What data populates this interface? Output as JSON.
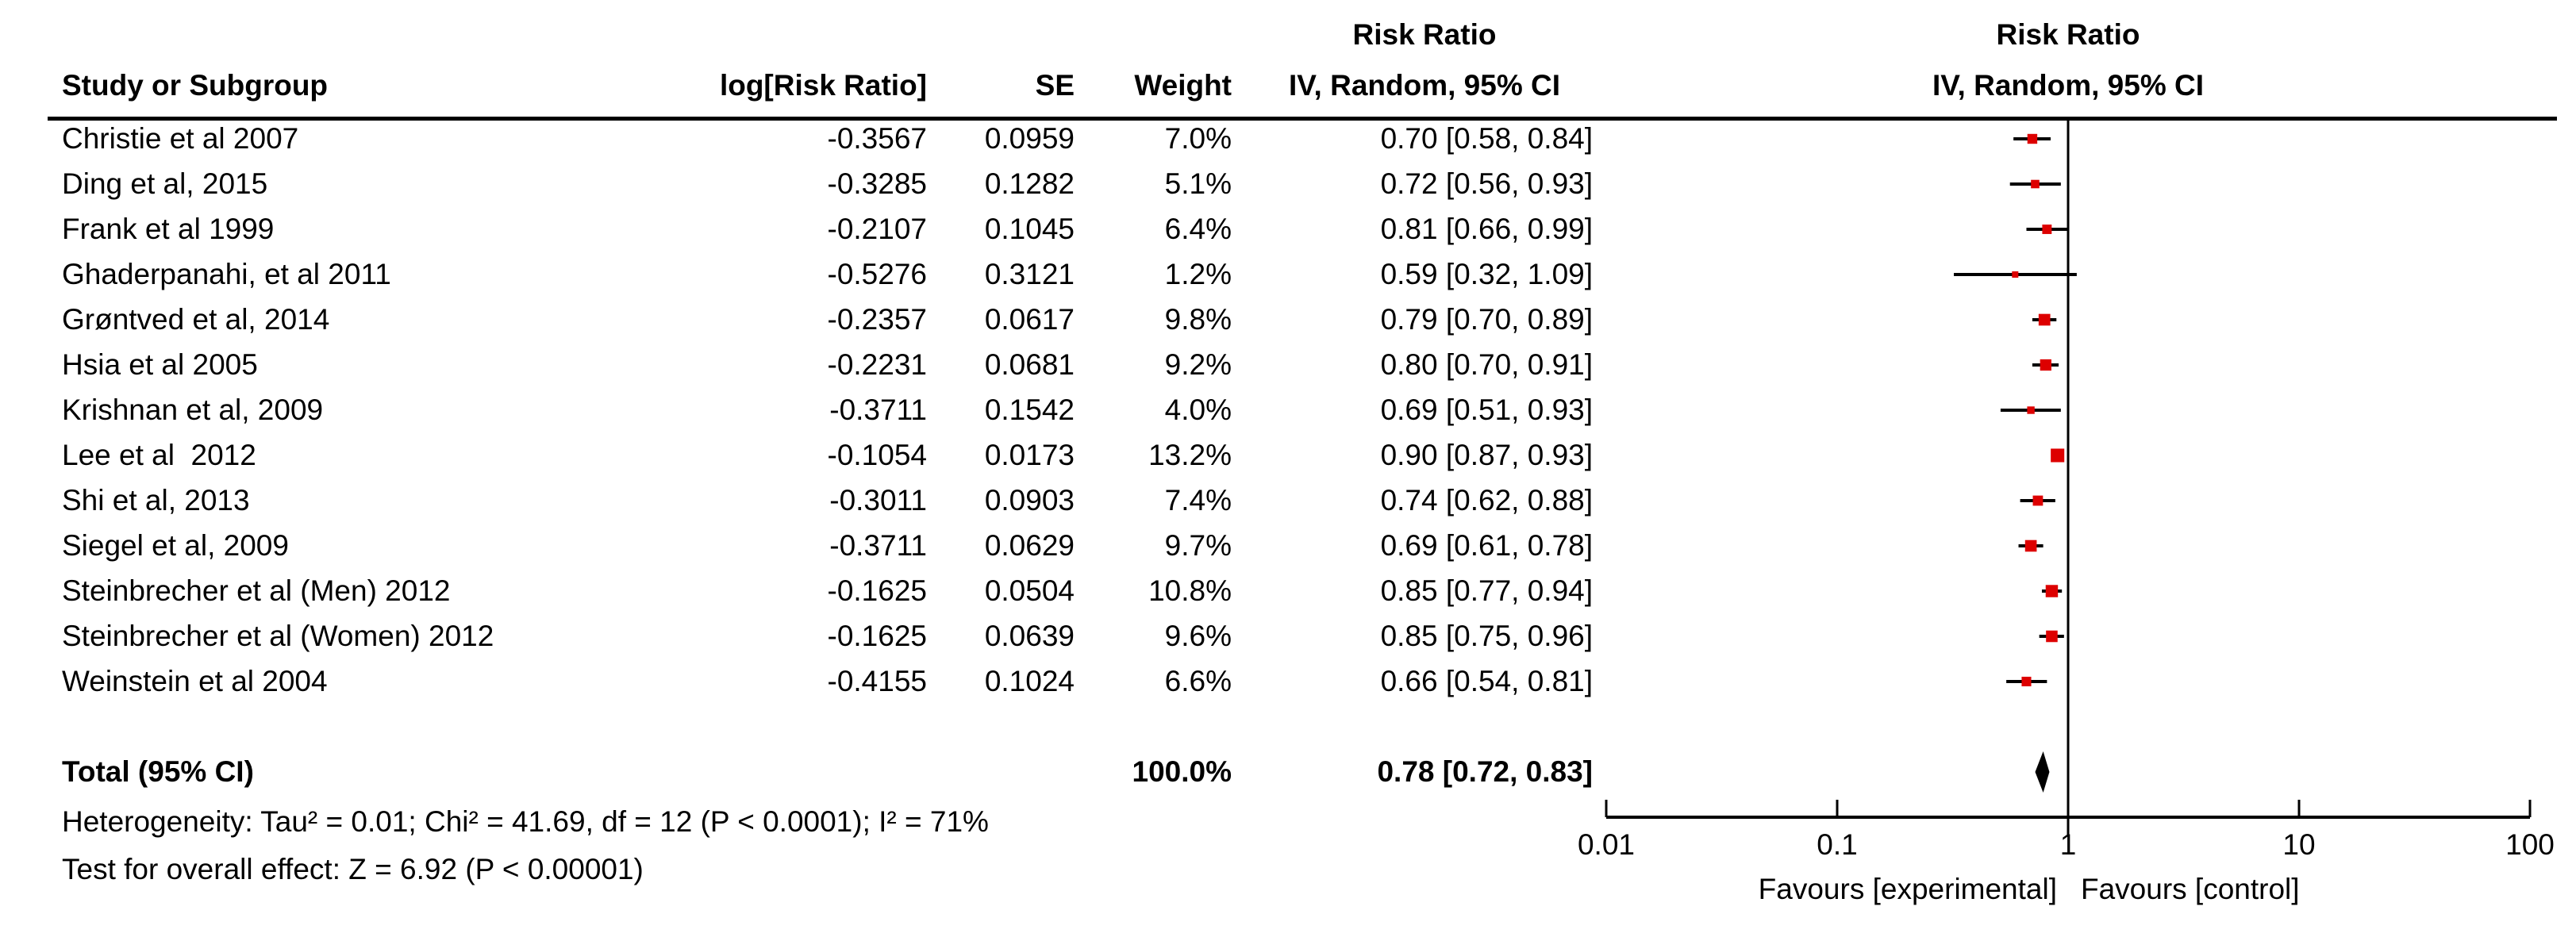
{
  "header": {
    "study": "Study or Subgroup",
    "log_rr": "log[Risk Ratio]",
    "se": "SE",
    "weight": "Weight",
    "effect_title": "Risk Ratio",
    "effect_subtitle": "IV, Random, 95% CI",
    "plot_title": "Risk Ratio",
    "plot_subtitle": "IV, Random, 95% CI"
  },
  "total": {
    "label": "Total (95% CI)",
    "weight": "100.0%",
    "ci_text": "0.78 [0.72, 0.83]"
  },
  "footer": {
    "heterogeneity": "Heterogeneity: Tau² = 0.01; Chi² = 41.69, df = 12 (P < 0.0001); I² = 71%",
    "overall_effect": "Test for overall effect: Z = 6.92 (P < 0.00001)"
  },
  "chart_data": {
    "type": "forest_plot",
    "effect_measure": "Risk Ratio",
    "model": "IV, Random, 95% CI",
    "x_scale": "log10",
    "x_axis": {
      "min": 0.01,
      "max": 100,
      "ticks": [
        0.01,
        0.1,
        1,
        10,
        100
      ],
      "tick_labels": [
        "0.01",
        "0.1",
        "1",
        "10",
        "100"
      ],
      "left_label": "Favours [experimental]",
      "right_label": "Favours [control]"
    },
    "no_effect_value": 1,
    "marker_color": "#DD0000",
    "line_color": "#000000",
    "studies": [
      {
        "name": "Christie et al 2007",
        "log_rr": "-0.3567",
        "se": "0.0959",
        "weight": "7.0%",
        "weight_value": 7.0,
        "rr": 0.7,
        "ci_low": 0.58,
        "ci_high": 0.84,
        "ci_text": "0.70 [0.58, 0.84]"
      },
      {
        "name": "Ding et al, 2015",
        "log_rr": "-0.3285",
        "se": "0.1282",
        "weight": "5.1%",
        "weight_value": 5.1,
        "rr": 0.72,
        "ci_low": 0.56,
        "ci_high": 0.93,
        "ci_text": "0.72 [0.56, 0.93]"
      },
      {
        "name": "Frank et al 1999",
        "log_rr": "-0.2107",
        "se": "0.1045",
        "weight": "6.4%",
        "weight_value": 6.4,
        "rr": 0.81,
        "ci_low": 0.66,
        "ci_high": 0.99,
        "ci_text": "0.81 [0.66, 0.99]"
      },
      {
        "name": "Ghaderpanahi, et al 2011",
        "log_rr": "-0.5276",
        "se": "0.3121",
        "weight": "1.2%",
        "weight_value": 1.2,
        "rr": 0.59,
        "ci_low": 0.32,
        "ci_high": 1.09,
        "ci_text": "0.59 [0.32, 1.09]"
      },
      {
        "name": "Grøntved et al, 2014",
        "log_rr": "-0.2357",
        "se": "0.0617",
        "weight": "9.8%",
        "weight_value": 9.8,
        "rr": 0.79,
        "ci_low": 0.7,
        "ci_high": 0.89,
        "ci_text": "0.79 [0.70, 0.89]"
      },
      {
        "name": "Hsia et al 2005",
        "log_rr": "-0.2231",
        "se": "0.0681",
        "weight": "9.2%",
        "weight_value": 9.2,
        "rr": 0.8,
        "ci_low": 0.7,
        "ci_high": 0.91,
        "ci_text": "0.80 [0.70, 0.91]"
      },
      {
        "name": "Krishnan et al, 2009",
        "log_rr": "-0.3711",
        "se": "0.1542",
        "weight": "4.0%",
        "weight_value": 4.0,
        "rr": 0.69,
        "ci_low": 0.51,
        "ci_high": 0.93,
        "ci_text": "0.69 [0.51, 0.93]"
      },
      {
        "name": "Lee et al  2012",
        "log_rr": "-0.1054",
        "se": "0.0173",
        "weight": "13.2%",
        "weight_value": 13.2,
        "rr": 0.9,
        "ci_low": 0.87,
        "ci_high": 0.93,
        "ci_text": "0.90 [0.87, 0.93]"
      },
      {
        "name": "Shi et al, 2013",
        "log_rr": "-0.3011",
        "se": "0.0903",
        "weight": "7.4%",
        "weight_value": 7.4,
        "rr": 0.74,
        "ci_low": 0.62,
        "ci_high": 0.88,
        "ci_text": "0.74 [0.62, 0.88]"
      },
      {
        "name": "Siegel et al, 2009",
        "log_rr": "-0.3711",
        "se": "0.0629",
        "weight": "9.7%",
        "weight_value": 9.7,
        "rr": 0.69,
        "ci_low": 0.61,
        "ci_high": 0.78,
        "ci_text": "0.69 [0.61, 0.78]"
      },
      {
        "name": "Steinbrecher et al (Men) 2012",
        "log_rr": "-0.1625",
        "se": "0.0504",
        "weight": "10.8%",
        "weight_value": 10.8,
        "rr": 0.85,
        "ci_low": 0.77,
        "ci_high": 0.94,
        "ci_text": "0.85 [0.77, 0.94]"
      },
      {
        "name": "Steinbrecher et al (Women) 2012",
        "log_rr": "-0.1625",
        "se": "0.0639",
        "weight": "9.6%",
        "weight_value": 9.6,
        "rr": 0.85,
        "ci_low": 0.75,
        "ci_high": 0.96,
        "ci_text": "0.85 [0.75, 0.96]"
      },
      {
        "name": "Weinstein et al 2004",
        "log_rr": "-0.4155",
        "se": "0.1024",
        "weight": "6.6%",
        "weight_value": 6.6,
        "rr": 0.66,
        "ci_low": 0.54,
        "ci_high": 0.81,
        "ci_text": "0.66 [0.54, 0.81]"
      }
    ],
    "total": {
      "rr": 0.78,
      "ci_low": 0.72,
      "ci_high": 0.83,
      "weight_value": 100.0
    }
  }
}
